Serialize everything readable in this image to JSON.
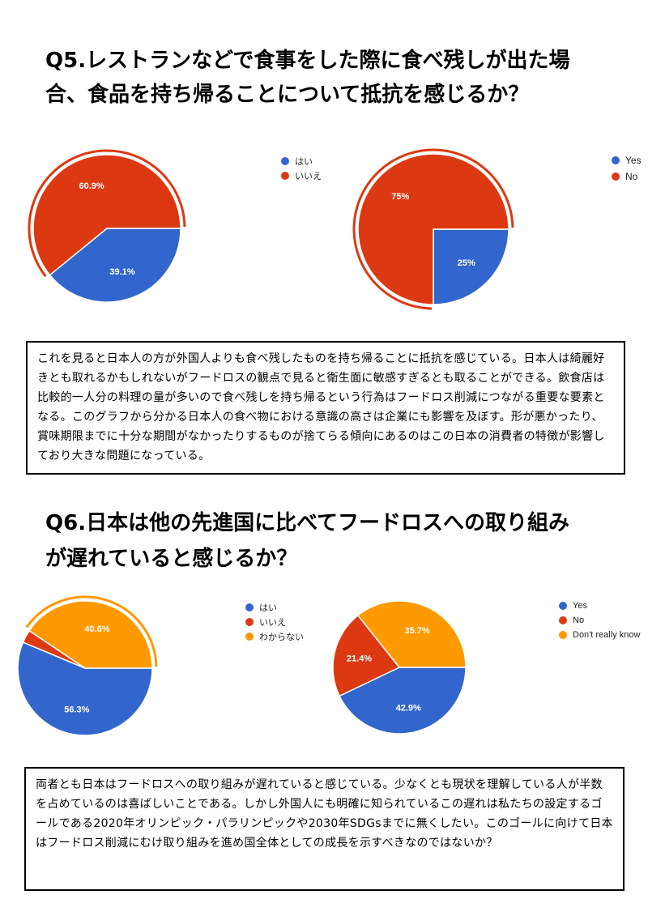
{
  "q5": {
    "title_line1": "Q5.レストランなどで食事をした際に食べ残しが出た場",
    "title_line2": "合、食品を持ち帰ることについて抵抗を感じるか？",
    "note": "これを見ると日本人の方が外国人よりも食べ残したものを持ち帰ることに抵抗を感じている。日本人は綺麗好きとも取れるかもしれないがフードロスの観点で見ると衛生面に敏感すぎるとも取ることができる。飲食店は比較的一人分の料理の量が多いので食べ残しを持ち帰るという行為はフードロス削減につながる重要な要素となる。このグラフから分かる日本人の食べ物における意識の高さは企業にも影響を及ぼす。形が悪かったり、賞味期限までに十分な期間がなかったりするものが捨てらる傾向にあるのはこの日本の消費者の特徴が影響しており大きな問題になっている。"
  },
  "q6": {
    "title_line1": "Q6.日本は他の先進国に比べてフードロスへの取り組み",
    "title_line2": "が遅れていると感じるか？",
    "note": "両者とも日本はフードロスへの取り組みが遅れていると感じている。少なくとも現状を理解している人が半数を占めているのは喜ばしいことである。しかし外国人にも明確に知られているこの遅れは私たちの設定するゴールである2020年オリンピック・パラリンピックや2030年SDGsまでに無くしたい。このゴールに向けて日本はフードロス削減にむけ取り組みを進め国全体としての成長を示すべきなのではないか？"
  },
  "colors": {
    "blue": "#3366cc",
    "red": "#dc3912",
    "orange": "#ff9900"
  },
  "chart_data": [
    {
      "id": "q5-jp",
      "type": "pie",
      "categories": [
        "はい",
        "いいえ"
      ],
      "values": [
        39.1,
        60.9
      ],
      "labels": [
        "39.1%",
        "60.9%"
      ],
      "colors": [
        "#3366cc",
        "#dc3912"
      ],
      "exploded": 1,
      "legend_placement": "right"
    },
    {
      "id": "q5-en",
      "type": "pie",
      "categories": [
        "Yes",
        "No"
      ],
      "values": [
        25,
        75
      ],
      "labels": [
        "25%",
        "75%"
      ],
      "colors": [
        "#3366cc",
        "#dc3912"
      ],
      "exploded": 1,
      "legend_placement": "right"
    },
    {
      "id": "q6-jp",
      "type": "pie",
      "categories": [
        "はい",
        "いいえ",
        "わからない"
      ],
      "values": [
        56.3,
        3.1,
        40.6
      ],
      "labels": [
        "56.3%",
        "",
        "40.6%"
      ],
      "colors": [
        "#3366cc",
        "#dc3912",
        "#ff9900"
      ],
      "exploded": 2,
      "legend_placement": "right"
    },
    {
      "id": "q6-en",
      "type": "pie",
      "categories": [
        "Yes",
        "No",
        "Don't really know"
      ],
      "values": [
        42.9,
        21.4,
        35.7
      ],
      "labels": [
        "42.9%",
        "21.4%",
        "35.7%"
      ],
      "colors": [
        "#3366cc",
        "#dc3912",
        "#ff9900"
      ],
      "exploded": -1,
      "legend_placement": "right"
    }
  ]
}
